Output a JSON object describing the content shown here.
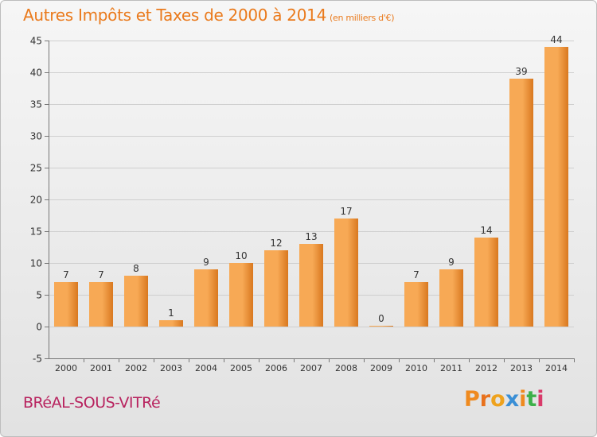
{
  "header": {
    "title": "Autres Impôts et Taxes de 2000 à 2014",
    "unit": "(en milliers d'€)"
  },
  "footer": {
    "commune": "BRéAL-SOUS-VITRé",
    "logo": "Proxiti"
  },
  "colors": {
    "title": "#ea7a1c",
    "commune": "#b8235f",
    "bar_light": "#f7a955",
    "bar_dark": "#d9781f",
    "logo_letters": [
      "#ef8a1f",
      "#e8711c",
      "#eea21d",
      "#3a8fd6",
      "#ef8a1f",
      "#3db04a",
      "#d93a6a"
    ]
  },
  "chart_data": {
    "type": "bar",
    "title": "Autres Impôts et Taxes de 2000 à 2014",
    "subtitle": "(en milliers d'€)",
    "xlabel": "",
    "ylabel": "",
    "categories": [
      "2000",
      "2001",
      "2002",
      "2003",
      "2004",
      "2005",
      "2006",
      "2007",
      "2008",
      "2009",
      "2010",
      "2011",
      "2012",
      "2013",
      "2014"
    ],
    "values": [
      7,
      7,
      8,
      1,
      9,
      10,
      12,
      13,
      17,
      0,
      7,
      9,
      14,
      39,
      44
    ],
    "ylim": [
      -5,
      45
    ],
    "yticks": [
      "-5",
      "0",
      "5",
      "10",
      "15",
      "20",
      "25",
      "30",
      "35",
      "40",
      "45"
    ],
    "grid": true,
    "legend": "none"
  }
}
